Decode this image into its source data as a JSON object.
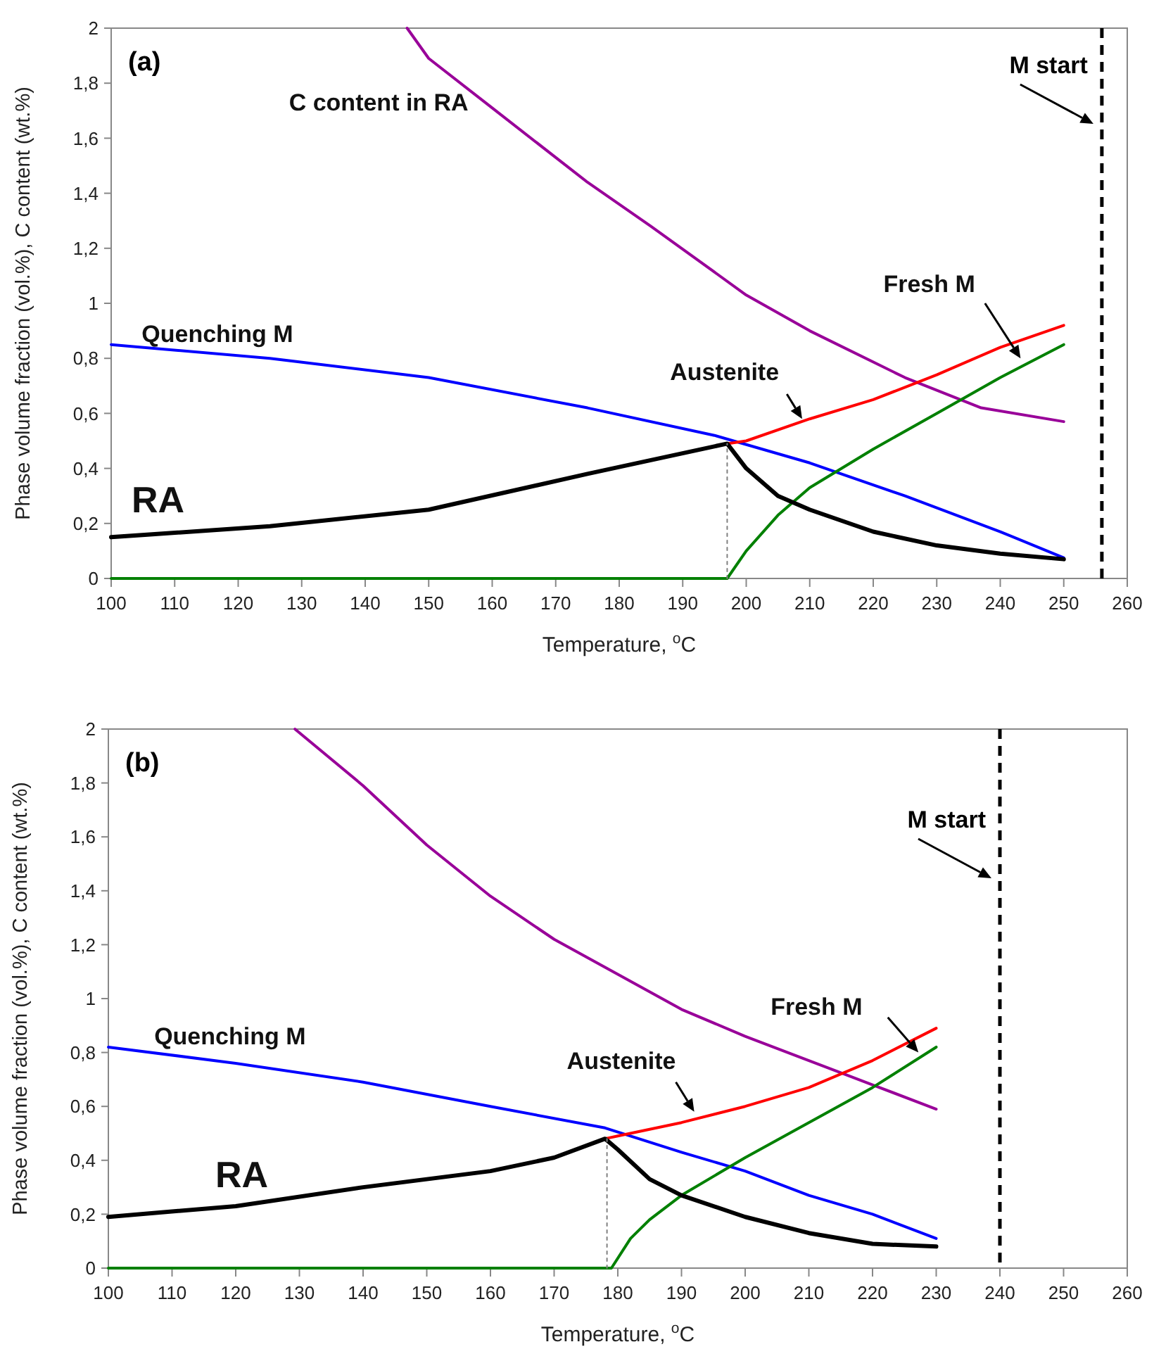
{
  "chart_data": [
    {
      "type": "line",
      "title": "(a)",
      "xlabel": "Temperature, $^{o}$C",
      "ylabel": "Phase volume fraction (vol.%), C content (wt.%)",
      "xlim": [
        100,
        260
      ],
      "xticks": [
        100,
        110,
        120,
        130,
        140,
        150,
        160,
        170,
        180,
        190,
        200,
        210,
        220,
        230,
        240,
        250,
        260
      ],
      "ylim": [
        0,
        2
      ],
      "yticks": [
        0,
        {
          "value": 0.2,
          "label": "0,2"
        },
        {
          "value": 0.4,
          "label": "0,4"
        },
        {
          "value": 0.6,
          "label": "0,6"
        },
        {
          "value": 0.8,
          "label": "0,8"
        },
        1,
        {
          "value": 1.2,
          "label": "1,2"
        },
        {
          "value": 1.4,
          "label": "1,4"
        },
        {
          "value": 1.6,
          "label": "1,6"
        },
        {
          "value": 1.8,
          "label": "1,8"
        },
        2
      ],
      "grid": false,
      "series": [
        {
          "name": "C content in RA",
          "color": "#990099",
          "x": [
            146.6,
            150,
            160,
            175,
            185,
            200,
            210,
            225,
            237,
            250
          ],
          "values": [
            2,
            1.89,
            1.71,
            1.44,
            1.28,
            1.03,
            0.9,
            0.73,
            0.62,
            0.57
          ]
        },
        {
          "name": "Quenching M",
          "color": "#0000ff",
          "x": [
            100,
            125,
            150,
            175,
            195,
            210,
            225,
            240,
            250
          ],
          "values": [
            0.85,
            0.8,
            0.73,
            0.62,
            0.52,
            0.42,
            0.3,
            0.17,
            0.075
          ]
        },
        {
          "name": "Austenite",
          "color": "#ff0000",
          "x": [
            197,
            200,
            210,
            220,
            230,
            240,
            250
          ],
          "values": [
            0.49,
            0.5,
            0.58,
            0.65,
            0.74,
            0.84,
            0.92
          ]
        },
        {
          "name": "Fresh M",
          "color": "#008000",
          "x": [
            100,
            197,
            200,
            205,
            210,
            220,
            230,
            240,
            250
          ],
          "values": [
            0,
            0,
            0.1,
            0.23,
            0.33,
            0.47,
            0.6,
            0.73,
            0.85
          ]
        },
        {
          "name": "RA",
          "color": "#000000",
          "x": [
            100,
            125,
            150,
            175,
            197,
            200,
            205,
            210,
            220,
            230,
            240,
            250
          ],
          "values": [
            0.15,
            0.19,
            0.25,
            0.38,
            0.49,
            0.4,
            0.3,
            0.25,
            0.17,
            0.12,
            0.09,
            0.07
          ]
        },
        {
          "color": "#808080",
          "line_style": "dotted",
          "x": [
            197,
            197
          ],
          "values": [
            0,
            0.49
          ]
        }
      ],
      "ref_lines": [
        {
          "axis": "x",
          "value": 256,
          "label": "M start",
          "color": "#000000",
          "line_style": "dashed"
        }
      ]
    },
    {
      "type": "line",
      "title": "(b)",
      "xlabel": "Temperature, $^{o}$C",
      "ylabel": "Phase volume fraction (vol.%), C content (wt.%)",
      "xlim": [
        100,
        260
      ],
      "xticks": [
        100,
        110,
        120,
        130,
        140,
        150,
        160,
        170,
        180,
        190,
        200,
        210,
        220,
        230,
        240,
        250,
        260
      ],
      "ylim": [
        0,
        2
      ],
      "yticks": [
        0,
        {
          "value": 0.2,
          "label": "0,2"
        },
        {
          "value": 0.4,
          "label": "0,4"
        },
        {
          "value": 0.6,
          "label": "0,6"
        },
        {
          "value": 0.8,
          "label": "0,8"
        },
        1,
        {
          "value": 1.2,
          "label": "1,2"
        },
        {
          "value": 1.4,
          "label": "1,4"
        },
        {
          "value": 1.6,
          "label": "1,6"
        },
        {
          "value": 1.8,
          "label": "1,8"
        },
        2
      ],
      "grid": false,
      "series": [
        {
          "color": "#990099",
          "x": [
            129.3,
            140,
            150,
            160,
            170,
            180,
            190,
            200,
            210,
            220,
            230
          ],
          "values": [
            2,
            1.79,
            1.57,
            1.38,
            1.22,
            1.09,
            0.96,
            0.86,
            0.77,
            0.68,
            0.59
          ]
        },
        {
          "name": "Quenching M",
          "color": "#0000ff",
          "x": [
            100,
            120,
            140,
            160,
            178,
            190,
            200,
            210,
            220,
            230
          ],
          "values": [
            0.82,
            0.76,
            0.69,
            0.6,
            0.52,
            0.43,
            0.36,
            0.27,
            0.2,
            0.11
          ]
        },
        {
          "name": "Austenite",
          "color": "#ff0000",
          "x": [
            178,
            180,
            190,
            200,
            210,
            220,
            230
          ],
          "values": [
            0.48,
            0.49,
            0.54,
            0.6,
            0.67,
            0.77,
            0.89
          ]
        },
        {
          "name": "Fresh M",
          "color": "#008000",
          "x": [
            100,
            178,
            179,
            182,
            185,
            190,
            200,
            210,
            220,
            230
          ],
          "values": [
            0,
            0,
            0,
            0.11,
            0.18,
            0.27,
            0.41,
            0.54,
            0.67,
            0.82
          ]
        },
        {
          "name": "RA",
          "color": "#000000",
          "x": [
            100,
            120,
            140,
            160,
            170,
            178,
            180,
            185,
            190,
            200,
            210,
            220,
            230
          ],
          "values": [
            0.19,
            0.23,
            0.3,
            0.36,
            0.41,
            0.48,
            0.44,
            0.33,
            0.27,
            0.19,
            0.13,
            0.09,
            0.08
          ]
        },
        {
          "color": "#808080",
          "line_style": "dotted",
          "x": [
            178.3,
            178.3
          ],
          "values": [
            0,
            0.48
          ]
        }
      ],
      "ref_lines": [
        {
          "axis": "x",
          "value": 240,
          "label": "M start",
          "color": "#000000",
          "line_style": "dashed"
        }
      ]
    }
  ]
}
